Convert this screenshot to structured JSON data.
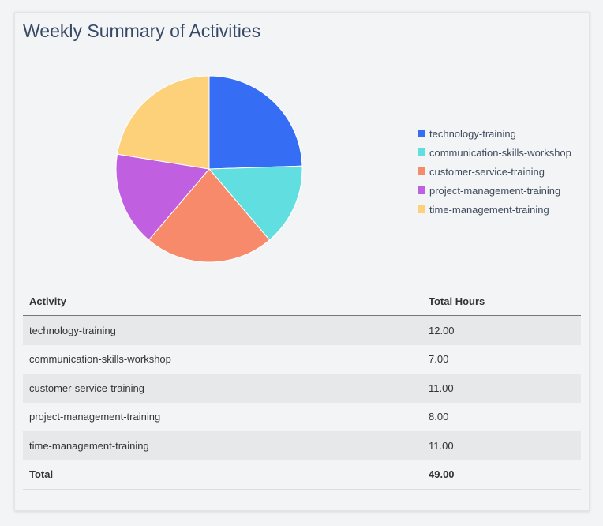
{
  "title": "Weekly Summary of Activities",
  "chart_data": {
    "type": "pie",
    "title": "",
    "categories": [
      "technology-training",
      "communication-skills-workshop",
      "customer-service-training",
      "project-management-training",
      "time-management-training"
    ],
    "values": [
      12,
      7,
      11,
      8,
      11
    ],
    "colors": [
      "#356ef5",
      "#61dfe0",
      "#f78a6b",
      "#c060e0",
      "#fdd07a"
    ],
    "legend_position": "right",
    "start": "top, clockwise"
  },
  "table": {
    "headers": [
      "Activity",
      "Total Hours"
    ],
    "rows": [
      [
        "technology-training",
        "12.00"
      ],
      [
        "communication-skills-workshop",
        "7.00"
      ],
      [
        "customer-service-training",
        "11.00"
      ],
      [
        "project-management-training",
        "8.00"
      ],
      [
        "time-management-training",
        "11.00"
      ]
    ],
    "total": [
      "Total",
      "49.00"
    ]
  }
}
